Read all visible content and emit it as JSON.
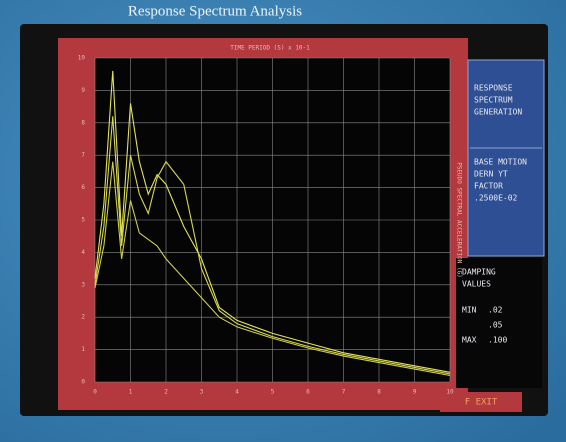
{
  "title": "Response Spectrum Analysis",
  "chart_data": {
    "type": "line",
    "x_label": "TIME PERIOD (S) x 10-1",
    "y_label": "PSEUDO SPECTRAL ACCELERATION (G)",
    "x": [
      0,
      0.25,
      0.5,
      0.75,
      1,
      1.25,
      1.5,
      1.75,
      2,
      2.5,
      3,
      3.5,
      4,
      5,
      6,
      7,
      8,
      9,
      10
    ],
    "series": [
      {
        "name": ".02",
        "color": "#e2e25a",
        "values": [
          3.2,
          5.5,
          9.6,
          4.5,
          8.6,
          6.8,
          5.8,
          6.4,
          6.1,
          4.8,
          3.8,
          2.3,
          1.9,
          1.5,
          1.2,
          0.9,
          0.7,
          0.5,
          0.3
        ]
      },
      {
        "name": ".05",
        "color": "#d8d84c",
        "values": [
          3.0,
          4.8,
          8.2,
          4.2,
          7.0,
          5.8,
          5.2,
          6.3,
          6.8,
          6.1,
          3.5,
          2.2,
          1.8,
          1.4,
          1.1,
          0.85,
          0.65,
          0.45,
          0.25
        ]
      },
      {
        "name": ".100",
        "color": "#cfcf48",
        "values": [
          2.9,
          4.2,
          6.8,
          3.8,
          5.6,
          4.6,
          4.4,
          4.2,
          3.8,
          3.2,
          2.6,
          2.0,
          1.7,
          1.35,
          1.05,
          0.8,
          0.6,
          0.4,
          0.2
        ]
      }
    ],
    "xlim": [
      0,
      10
    ],
    "xticks": [
      0,
      1,
      2,
      3,
      4,
      5,
      6,
      7,
      8,
      9,
      10
    ],
    "ylim": [
      0,
      10
    ],
    "yticks": [
      0,
      1,
      2,
      3,
      4,
      5,
      6,
      7,
      8,
      9,
      10
    ],
    "grid": true
  },
  "panel": {
    "mode": [
      "RESPONSE",
      "SPECTRUM",
      "GENERATION"
    ],
    "base": [
      "BASE MOTION",
      "DERN    YT",
      "FACTOR",
      ".2500E-02"
    ],
    "damping": [
      "DAMPING",
      "VALUES"
    ],
    "min_label": "MIN",
    "max_label": "MAX",
    "exit": "F EXIT"
  }
}
